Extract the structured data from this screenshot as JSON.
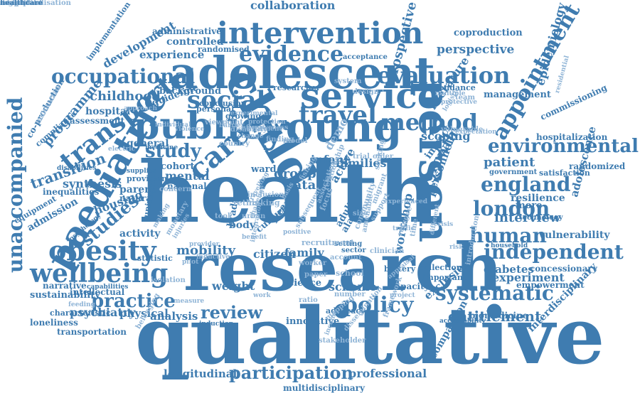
{
  "cloud": {
    "colors": {
      "dark": "#3f7cb0",
      "light": "#8fb4d6",
      "background": "#ffffff"
    },
    "words": [
      {
        "text": "health",
        "tone": "dark"
      },
      {
        "text": "qualitative",
        "tone": "dark"
      },
      {
        "text": "research",
        "tone": "dark"
      },
      {
        "text": "adolescent",
        "tone": "dark"
      },
      {
        "text": "person",
        "tone": "dark"
      },
      {
        "text": "child",
        "tone": "dark"
      },
      {
        "text": "young",
        "tone": "dark"
      },
      {
        "text": "public",
        "tone": "dark"
      },
      {
        "text": "service",
        "tone": "dark"
      },
      {
        "text": "paediatric",
        "tone": "dark"
      },
      {
        "text": "unaccompanied",
        "tone": "dark"
      },
      {
        "text": "intervention",
        "tone": "dark"
      },
      {
        "text": "obesity",
        "tone": "dark"
      },
      {
        "text": "wellbeing",
        "tone": "dark"
      },
      {
        "text": "social",
        "tone": "dark"
      },
      {
        "text": "travel",
        "tone": "dark"
      },
      {
        "text": "transport",
        "tone": "dark"
      },
      {
        "text": "method",
        "tone": "dark"
      },
      {
        "text": "evaluation",
        "tone": "dark"
      },
      {
        "text": "evidence",
        "tone": "dark"
      },
      {
        "text": "occupational",
        "tone": "dark"
      },
      {
        "text": "appointment",
        "tone": "dark"
      },
      {
        "text": "environmental",
        "tone": "dark"
      },
      {
        "text": "england",
        "tone": "dark"
      },
      {
        "text": "london",
        "tone": "dark"
      },
      {
        "text": "human",
        "tone": "dark"
      },
      {
        "text": "independent",
        "tone": "dark"
      },
      {
        "text": "systematic",
        "tone": "dark"
      },
      {
        "text": "policy",
        "tone": "dark"
      },
      {
        "text": "review",
        "tone": "dark"
      },
      {
        "text": "practice",
        "tone": "dark"
      },
      {
        "text": "participation",
        "tone": "dark"
      },
      {
        "text": "study",
        "tone": "dark"
      },
      {
        "text": "care",
        "tone": "dark"
      },
      {
        "text": "studies",
        "tone": "dark"
      },
      {
        "text": "transition",
        "tone": "dark"
      },
      {
        "text": "interview",
        "tone": "dark"
      },
      {
        "text": "entitlement",
        "tone": "dark"
      },
      {
        "text": "mobility",
        "tone": "dark"
      },
      {
        "text": "patient",
        "tone": "dark"
      },
      {
        "text": "childhood",
        "tone": "dark"
      },
      {
        "text": "growth",
        "tone": "dark"
      },
      {
        "text": "collaboration",
        "tone": "dark"
      },
      {
        "text": "prospective",
        "tone": "dark"
      },
      {
        "text": "coproduction",
        "tone": "dark"
      },
      {
        "text": "perspective",
        "tone": "dark"
      },
      {
        "text": "experience",
        "tone": "dark"
      },
      {
        "text": "controlled",
        "tone": "dark"
      },
      {
        "text": "administrative",
        "tone": "dark"
      },
      {
        "text": "development",
        "tone": "dark"
      },
      {
        "text": "programme",
        "tone": "dark"
      },
      {
        "text": "guideline",
        "tone": "dark"
      },
      {
        "text": "epidemiology",
        "tone": "dark"
      },
      {
        "text": "adolescence",
        "tone": "dark"
      },
      {
        "text": "resilience",
        "tone": "dark"
      },
      {
        "text": "more",
        "tone": "dark"
      },
      {
        "text": "vulnerability",
        "tone": "dark"
      },
      {
        "text": "diabetes",
        "tone": "dark"
      },
      {
        "text": "concessionary",
        "tone": "dark"
      },
      {
        "text": "experiment",
        "tone": "dark"
      },
      {
        "text": "empowerment",
        "tone": "dark"
      },
      {
        "text": "interdisciplinary",
        "tone": "dark"
      },
      {
        "text": "comparison",
        "tone": "dark"
      },
      {
        "text": "longitudinal",
        "tone": "dark"
      },
      {
        "text": "professional",
        "tone": "dark"
      },
      {
        "text": "multidisciplinary",
        "tone": "dark"
      },
      {
        "text": "psychiatry",
        "tone": "dark"
      },
      {
        "text": "transportation",
        "tone": "dark"
      },
      {
        "text": "physical",
        "tone": "dark"
      },
      {
        "text": "analysis",
        "tone": "dark"
      },
      {
        "text": "characteristic",
        "tone": "dark"
      },
      {
        "text": "intellectual",
        "tone": "dark"
      },
      {
        "text": "sustainability",
        "tone": "dark"
      },
      {
        "text": "hospital",
        "tone": "dark"
      },
      {
        "text": "assessment",
        "tone": "dark"
      },
      {
        "text": "co-production",
        "tone": "dark"
      },
      {
        "text": "implementation",
        "tone": "dark"
      },
      {
        "text": "synthesis",
        "tone": "dark"
      },
      {
        "text": "housing",
        "tone": "dark"
      },
      {
        "text": "activity",
        "tone": "dark"
      },
      {
        "text": "cohort",
        "tone": "dark"
      },
      {
        "text": "mental",
        "tone": "dark"
      },
      {
        "text": "national",
        "tone": "dark"
      },
      {
        "text": "general",
        "tone": "dark"
      },
      {
        "text": "natural",
        "tone": "dark"
      },
      {
        "text": "parent",
        "tone": "dark"
      },
      {
        "text": "provision",
        "tone": "dark"
      },
      {
        "text": "supplies",
        "tone": "dark"
      },
      {
        "text": "inequalities",
        "tone": "dark"
      },
      {
        "text": "admission",
        "tone": "dark"
      },
      {
        "text": "group",
        "tone": "dark"
      },
      {
        "text": "data",
        "tone": "dark"
      },
      {
        "text": "families",
        "tone": "dark"
      },
      {
        "text": "infant",
        "tone": "dark"
      },
      {
        "text": "active",
        "tone": "dark"
      },
      {
        "text": "scoping",
        "tone": "dark"
      },
      {
        "text": "literature",
        "tone": "dark"
      },
      {
        "text": "management",
        "tone": "dark"
      },
      {
        "text": "hospitalization",
        "tone": "dark"
      },
      {
        "text": "randomized",
        "tone": "dark"
      },
      {
        "text": "government",
        "tone": "dark"
      },
      {
        "text": "satisfaction",
        "tone": "dark"
      },
      {
        "text": "commissioning",
        "tone": "dark"
      },
      {
        "text": "personnel",
        "tone": "dark"
      },
      {
        "text": "impact",
        "tone": "dark"
      },
      {
        "text": "background",
        "tone": "dark"
      },
      {
        "text": "weight",
        "tone": "dark"
      },
      {
        "text": "citizen",
        "tone": "dark"
      },
      {
        "text": "family",
        "tone": "dark"
      },
      {
        "text": "body",
        "tone": "dark"
      },
      {
        "text": "cultural",
        "tone": "dark"
      },
      {
        "text": "scheme",
        "tone": "dark"
      },
      {
        "text": "science",
        "tone": "dark"
      },
      {
        "text": "innovative",
        "tone": "dark"
      },
      {
        "text": "workshop",
        "tone": "dark"
      },
      {
        "text": "exclusion",
        "tone": "dark"
      },
      {
        "text": "important",
        "tone": "dark"
      },
      {
        "text": "collection",
        "tone": "dark"
      },
      {
        "text": "capacity",
        "tone": "dark"
      },
      {
        "text": "battery",
        "tone": "dark"
      },
      {
        "text": "advocacy",
        "tone": "dark"
      },
      {
        "text": "loneliness",
        "tone": "dark"
      },
      {
        "text": "narrative",
        "tone": "dark"
      },
      {
        "text": "ward",
        "tone": "dark"
      },
      {
        "text": "free",
        "tone": "dark"
      },
      {
        "text": "bradford",
        "tone": "dark"
      },
      {
        "text": "adult",
        "tone": "dark"
      },
      {
        "text": "alarm",
        "tone": "dark"
      },
      {
        "text": "biomedicine",
        "tone": "dark"
      },
      {
        "text": "conclusion",
        "tone": "dark"
      },
      {
        "text": "randomised",
        "tone": "dark"
      },
      {
        "text": "researcher",
        "tone": "dark"
      },
      {
        "text": "attendance",
        "tone": "dark"
      },
      {
        "text": "acceptance",
        "tone": "dark"
      },
      {
        "text": "growing",
        "tone": "dark"
      },
      {
        "text": "personal",
        "tone": "dark"
      },
      {
        "text": "medicine",
        "tone": "dark"
      },
      {
        "text": "equipment",
        "tone": "dark"
      },
      {
        "text": "capabilities",
        "tone": "dark"
      },
      {
        "text": "psychology",
        "tone": "dark"
      },
      {
        "text": "statistic",
        "tone": "dark"
      },
      {
        "text": "universal",
        "tone": "dark"
      },
      {
        "text": "compliance",
        "tone": "dark"
      },
      {
        "text": "disabilities",
        "tone": "dark"
      },
      {
        "text": "technology",
        "tone": "dark"
      },
      {
        "text": "household",
        "tone": "dark"
      },
      {
        "text": "acceptability",
        "tone": "dark"
      },
      {
        "text": "sector",
        "tone": "dark"
      },
      {
        "text": "setting",
        "tone": "dark"
      },
      {
        "text": "induction",
        "tone": "dark"
      },
      {
        "text": "appraisal",
        "tone": "light"
      },
      {
        "text": "protective",
        "tone": "light"
      },
      {
        "text": "multivariate",
        "tone": "light"
      },
      {
        "text": "residential",
        "tone": "light"
      },
      {
        "text": "expectation",
        "tone": "light"
      },
      {
        "text": "introduction",
        "tone": "light"
      },
      {
        "text": "migrant",
        "tone": "light"
      },
      {
        "text": "refugee",
        "tone": "light"
      },
      {
        "text": "community",
        "tone": "light"
      },
      {
        "text": "school",
        "tone": "light"
      },
      {
        "text": "income",
        "tone": "light"
      },
      {
        "text": "framework",
        "tone": "light"
      },
      {
        "text": "belonging",
        "tone": "light"
      },
      {
        "text": "relationship",
        "tone": "light"
      },
      {
        "text": "dissemination",
        "tone": "light"
      },
      {
        "text": "stakeholder",
        "tone": "light"
      },
      {
        "text": "mapping",
        "tone": "light"
      },
      {
        "text": "integration",
        "tone": "light"
      },
      {
        "text": "rethinking",
        "tone": "light"
      },
      {
        "text": "inclusion",
        "tone": "light"
      },
      {
        "text": "focus",
        "tone": "light"
      },
      {
        "text": "size",
        "tone": "light"
      },
      {
        "text": "trial",
        "tone": "light"
      },
      {
        "text": "older",
        "tone": "light"
      },
      {
        "text": "team",
        "tone": "light"
      },
      {
        "text": "design",
        "tone": "light"
      },
      {
        "text": "system",
        "tone": "light"
      },
      {
        "text": "vulnerable",
        "tone": "light"
      },
      {
        "text": "multiple",
        "tone": "light"
      },
      {
        "text": "approach",
        "tone": "light"
      },
      {
        "text": "individual",
        "tone": "light"
      },
      {
        "text": "experimental",
        "tone": "light"
      },
      {
        "text": "protection",
        "tone": "light"
      },
      {
        "text": "effectiveness",
        "tone": "light"
      },
      {
        "text": "disability",
        "tone": "light"
      },
      {
        "text": "viewpoint",
        "tone": "light"
      },
      {
        "text": "country",
        "tone": "light"
      },
      {
        "text": "barrier",
        "tone": "light"
      },
      {
        "text": "change",
        "tone": "light"
      },
      {
        "text": "finding",
        "tone": "light"
      },
      {
        "text": "violence",
        "tone": "light"
      },
      {
        "text": "model",
        "tone": "light"
      },
      {
        "text": "tool",
        "tone": "light"
      },
      {
        "text": "urban",
        "tone": "light"
      },
      {
        "text": "recruitment",
        "tone": "light"
      },
      {
        "text": "account",
        "tone": "light"
      },
      {
        "text": "clinician",
        "tone": "light"
      },
      {
        "text": "paper",
        "tone": "light"
      },
      {
        "text": "work",
        "tone": "light"
      },
      {
        "text": "ratio",
        "tone": "light"
      },
      {
        "text": "number",
        "tone": "light"
      },
      {
        "text": "project",
        "tone": "light"
      },
      {
        "text": "isolation",
        "tone": "light"
      },
      {
        "text": "electric",
        "tone": "light"
      },
      {
        "text": "provider",
        "tone": "light"
      },
      {
        "text": "inductive",
        "tone": "light"
      },
      {
        "text": "pilot",
        "tone": "light"
      },
      {
        "text": "feeding",
        "tone": "light"
      },
      {
        "text": "concern",
        "tone": "light"
      },
      {
        "text": "monetary",
        "tone": "light"
      },
      {
        "text": "making",
        "tone": "light"
      },
      {
        "text": "injuries",
        "tone": "light"
      },
      {
        "text": "measure",
        "tone": "light"
      },
      {
        "text": "support",
        "tone": "light"
      },
      {
        "text": "experienced",
        "tone": "light"
      },
      {
        "text": "seeking",
        "tone": "light"
      },
      {
        "text": "logistic",
        "tone": "light"
      },
      {
        "text": "travelling",
        "tone": "light"
      },
      {
        "text": "fishing",
        "tone": "light"
      },
      {
        "text": "basis",
        "tone": "light"
      },
      {
        "text": "treatment",
        "tone": "light"
      },
      {
        "text": "challenge",
        "tone": "light"
      },
      {
        "text": "subsequent",
        "tone": "light"
      },
      {
        "text": "positive",
        "tone": "light"
      },
      {
        "text": "benefit",
        "tone": "light"
      },
      {
        "text": "worker",
        "tone": "light"
      },
      {
        "text": "association",
        "tone": "light"
      },
      {
        "text": "traffic",
        "tone": "light"
      },
      {
        "text": "amenable",
        "tone": "light"
      },
      {
        "text": "different",
        "tone": "light"
      },
      {
        "text": "crisis",
        "tone": "light"
      },
      {
        "text": "risk",
        "tone": "light"
      },
      {
        "text": "time",
        "tone": "light"
      },
      {
        "text": "demo",
        "tone": "light"
      },
      {
        "text": "drug",
        "tone": "light"
      },
      {
        "text": "access",
        "tone": "light"
      },
      {
        "text": "cross",
        "tone": "light"
      },
      {
        "text": "sample",
        "tone": "light"
      },
      {
        "text": "conceptualisation",
        "tone": "light"
      },
      {
        "text": "consultant",
        "tone": "light"
      },
      {
        "text": "maternal",
        "tone": "light"
      },
      {
        "text": "adaptation",
        "tone": "light"
      },
      {
        "text": "region",
        "tone": "light"
      },
      {
        "text": "healthcare",
        "tone": "dark"
      }
    ]
  }
}
